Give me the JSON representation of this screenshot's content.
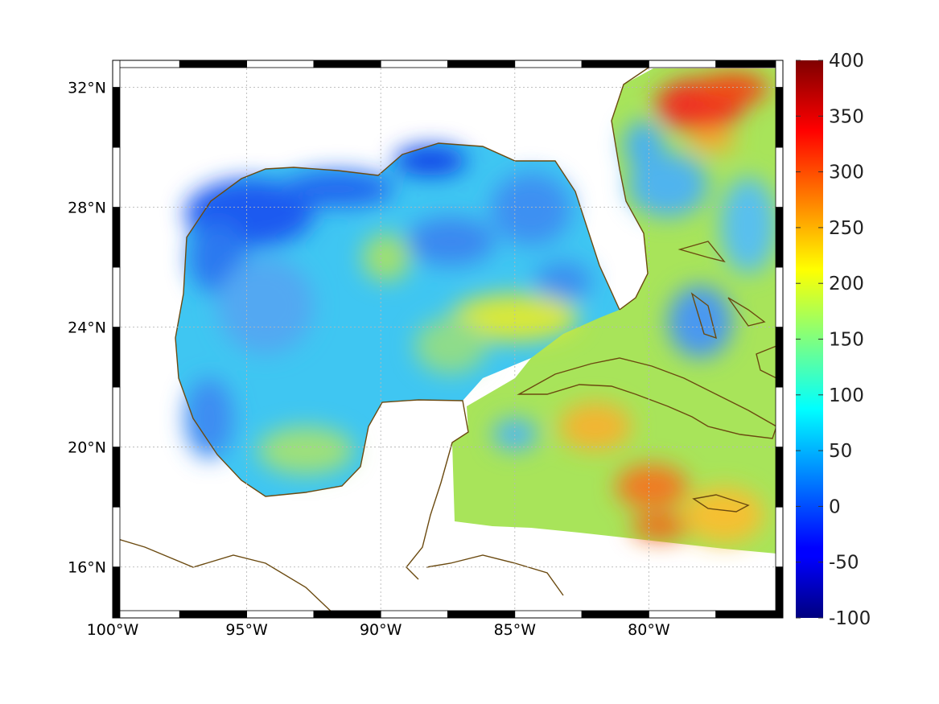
{
  "map": {
    "lon_labels": [
      "100°W",
      "95°W",
      "90°W",
      "85°W",
      "80°W"
    ],
    "lon_values": [
      -100,
      -95,
      -90,
      -85,
      -80
    ],
    "lat_labels": [
      "32°N",
      "28°N",
      "24°N",
      "20°N",
      "16°N"
    ],
    "lat_values": [
      32,
      28,
      24,
      20,
      16
    ],
    "lon_range": [
      -100,
      -75
    ],
    "lat_range": [
      14.3,
      32.9
    ],
    "grid": true,
    "coastline_color": "#6b4a10",
    "land_color": "#ffffff"
  },
  "colorbar": {
    "min": -100,
    "max": 400,
    "tick_labels": [
      "400",
      "350",
      "300",
      "250",
      "200",
      "150",
      "100",
      "50",
      "0",
      "-50",
      "-100"
    ],
    "tick_values": [
      400,
      350,
      300,
      250,
      200,
      150,
      100,
      50,
      0,
      -50,
      -100
    ],
    "colormap": "jet",
    "placement": "right"
  }
}
